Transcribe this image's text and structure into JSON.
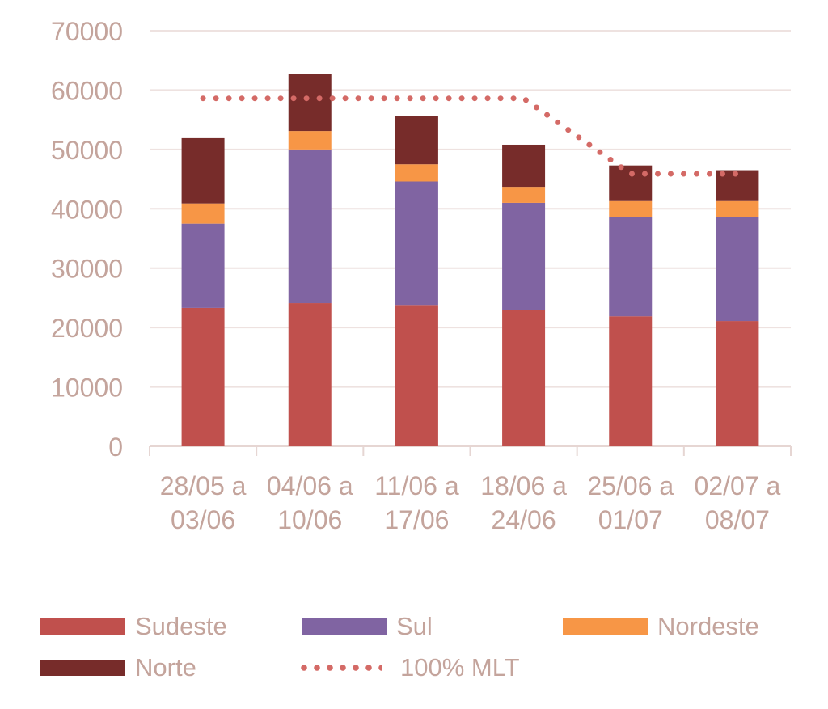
{
  "chart_data": {
    "type": "bar",
    "stacked": true,
    "title": "",
    "xlabel": "",
    "ylabel": "",
    "ylim": [
      0,
      70000
    ],
    "yticks": [
      "0",
      "10000",
      "20000",
      "30000",
      "40000",
      "50000",
      "60000",
      "70000"
    ],
    "categories": [
      [
        "28/05 a",
        "03/06"
      ],
      [
        "04/06 a",
        "10/06"
      ],
      [
        "11/06 a",
        "17/06"
      ],
      [
        "18/06 a",
        "24/06"
      ],
      [
        "25/06 a",
        "01/07"
      ],
      [
        "02/07 a",
        "08/07"
      ]
    ],
    "series": [
      {
        "name": "Sudeste",
        "color": "#C0504D",
        "values": [
          23300,
          24100,
          23800,
          23000,
          21900,
          21100
        ]
      },
      {
        "name": "Sul",
        "color": "#8064A2",
        "values": [
          14200,
          25900,
          20800,
          18000,
          16700,
          17500
        ]
      },
      {
        "name": "Nordeste",
        "color": "#F79646",
        "values": [
          3400,
          3100,
          2900,
          2700,
          2700,
          2700
        ]
      },
      {
        "name": "Norte",
        "color": "#772C2A",
        "values": [
          11000,
          9600,
          8200,
          7100,
          6000,
          5200
        ]
      }
    ],
    "line": {
      "name": "100% MLT",
      "color": "#D46A66",
      "style": "dotted",
      "values": [
        58600,
        58600,
        58600,
        58600,
        45900,
        45900
      ]
    },
    "grid": true,
    "legend_position": "bottom"
  }
}
